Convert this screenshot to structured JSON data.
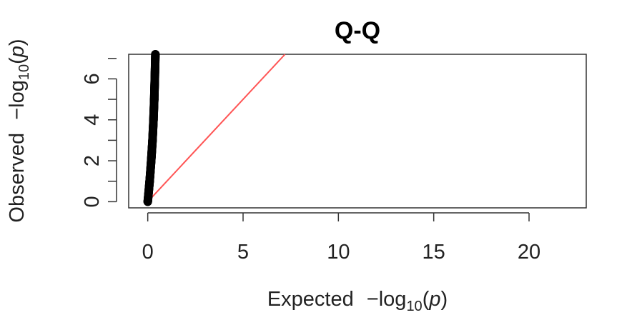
{
  "chart_data": {
    "type": "scatter",
    "title": "Q-Q",
    "xlabel": {
      "prefix": "Expected",
      "formula": "−log",
      "subscript": "10",
      "paren_open": "(",
      "var": "p",
      "paren_close": ")"
    },
    "ylabel": {
      "prefix": "Observed",
      "formula": "−log",
      "subscript": "10",
      "paren_open": "(",
      "var": "p",
      "paren_close": ")"
    },
    "xlim": [
      -1,
      23
    ],
    "ylim": [
      -0.3,
      7.2
    ],
    "x_ticks": [
      0,
      5,
      10,
      15,
      20
    ],
    "x_tick_labels": [
      "0",
      "5",
      "10",
      "15",
      "20"
    ],
    "y_ticks": [
      0,
      2,
      4,
      6
    ],
    "y_tick_labels": [
      "0",
      "2",
      "4",
      "6"
    ],
    "grid": false,
    "series": [
      {
        "values": [
          {
            "x": 0.0,
            "y": 0.0
          },
          {
            "x": 0.1,
            "y": 1.0
          },
          {
            "x": 0.18,
            "y": 2.0
          },
          {
            "x": 0.25,
            "y": 3.0
          },
          {
            "x": 0.3,
            "y": 4.0
          },
          {
            "x": 0.34,
            "y": 5.0
          },
          {
            "x": 0.37,
            "y": 6.0
          },
          {
            "x": 0.4,
            "y": 7.2
          }
        ],
        "color": "#000000"
      }
    ],
    "reference_line": {
      "from": [
        0,
        0
      ],
      "to": [
        7.2,
        7.2
      ],
      "color": "#ff5555"
    }
  }
}
